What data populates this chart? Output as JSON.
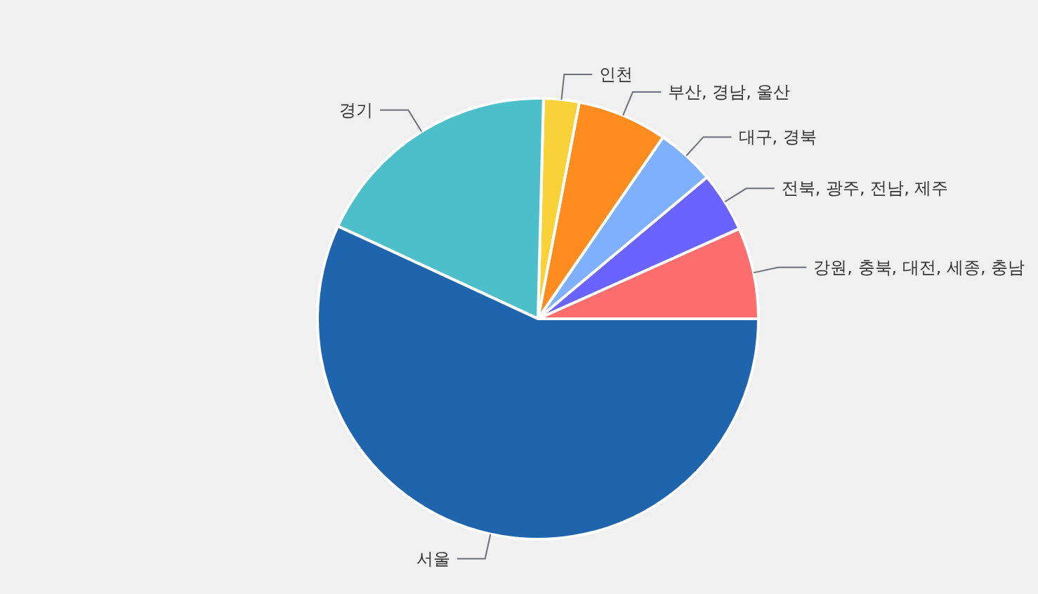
{
  "chart_data": {
    "type": "pie",
    "categories": [
      "강원, 충북, 대전, 세종, 충남",
      "전북, 광주, 전남, 제주",
      "대구, 경북",
      "부산, 경남, 울산",
      "인천",
      "경기",
      "서울"
    ],
    "values": [
      6.7,
      4.4,
      4.3,
      6.6,
      2.6,
      18.5,
      56.9
    ],
    "colors": [
      "#ff6e6e",
      "#6b63ff",
      "#7eb0ff",
      "#ff8c1e",
      "#f9d23a",
      "#4dbfca",
      "#1f65ae"
    ]
  }
}
